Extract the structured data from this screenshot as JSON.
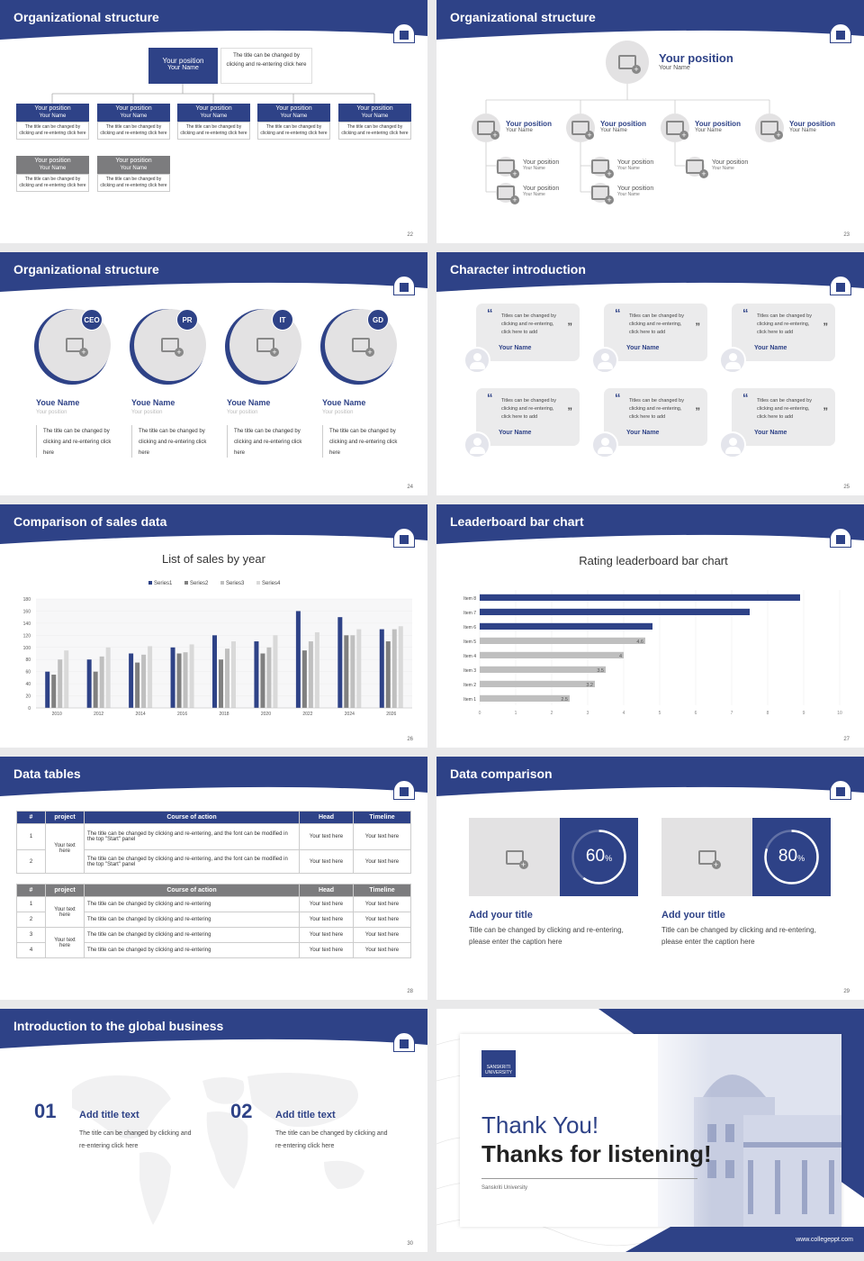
{
  "colors": {
    "brand": "#2e4287",
    "gray": "#7c7c7e",
    "light": "#e3e2e3"
  },
  "s22": {
    "title": "Organizational structure",
    "page": "22",
    "top": {
      "pos": "Your position",
      "name": "Your Name",
      "desc": "The title can be changed by clicking and re-entering click here"
    },
    "boxes": [
      {
        "pos": "Your position",
        "name": "Your Name",
        "desc": "The title can be changed by clicking and re-entering click here"
      },
      {
        "pos": "Your position",
        "name": "Your Name",
        "desc": "The title can be changed by clicking and re-entering click here"
      },
      {
        "pos": "Your position",
        "name": "Your Name",
        "desc": "The title can be changed by clicking and re-entering click here"
      },
      {
        "pos": "Your position",
        "name": "Your Name",
        "desc": "The title can be changed by clicking and re-entering click here"
      },
      {
        "pos": "Your position",
        "name": "Your Name",
        "desc": "The title can be changed by clicking and re-entering click here"
      }
    ],
    "subboxes": [
      {
        "pos": "Your position",
        "name": "Your Name",
        "desc": "The title can be changed by clicking and re-entering click here"
      },
      {
        "pos": "Your position",
        "name": "Your Name",
        "desc": "The title can be changed by clicking and re-entering click here"
      }
    ]
  },
  "s23": {
    "title": "Organizational structure",
    "page": "23",
    "top": {
      "pos": "Your position",
      "name": "Your Name"
    },
    "row": [
      {
        "pos": "Your position",
        "name": "Your Name"
      },
      {
        "pos": "Your position",
        "name": "Your Name"
      },
      {
        "pos": "Your position",
        "name": "Your Name"
      },
      {
        "pos": "Your position",
        "name": "Your Name"
      }
    ],
    "sub": [
      {
        "pos": "Your position",
        "name": "Your Name"
      },
      {
        "pos": "Your position",
        "name": "Your Name"
      },
      {
        "pos": "Your position",
        "name": "Your Name"
      },
      {
        "pos": "Your position",
        "name": "Your Name"
      },
      {
        "pos": "Your position",
        "name": "Your Name"
      }
    ]
  },
  "s24": {
    "title": "Organizational structure",
    "page": "24",
    "people": [
      {
        "badge": "CEO",
        "name": "Youe Name",
        "pos": "Your position",
        "desc": "The title can be changed by clicking and re-entering click here"
      },
      {
        "badge": "PR",
        "name": "Youe Name",
        "pos": "Your position",
        "desc": "The title can be changed by clicking and re-entering click here"
      },
      {
        "badge": "IT",
        "name": "Youe Name",
        "pos": "Your position",
        "desc": "The title can be changed by clicking and re-entering click here"
      },
      {
        "badge": "GD",
        "name": "Youe Name",
        "pos": "Your position",
        "desc": "The title can be changed by clicking and re-entering click here"
      }
    ]
  },
  "s25": {
    "title": "Character introduction",
    "page": "25",
    "cards": [
      {
        "text": "Titles can be changed by clicking and re-entering, click here to add",
        "name": "Your Name"
      },
      {
        "text": "Titles can be changed by clicking and re-entering, click here to add",
        "name": "Your Name"
      },
      {
        "text": "Titles can be changed by clicking and re-entering, click here to add",
        "name": "Your Name"
      },
      {
        "text": "Titles can be changed by clicking and re-entering, click here to add",
        "name": "Your Name"
      },
      {
        "text": "Titles can be changed by clicking and re-entering, click here to add",
        "name": "Your Name"
      },
      {
        "text": "Titles can be changed by clicking and re-entering, click here to add",
        "name": "Your Name"
      }
    ]
  },
  "s26": {
    "title": "Comparison of sales data",
    "page": "26"
  },
  "s27": {
    "title": "Leaderboard bar chart",
    "page": "27"
  },
  "chart_data": [
    {
      "type": "bar",
      "title": "List of sales by year",
      "categories": [
        "2010",
        "2012",
        "2014",
        "2016",
        "2018",
        "2020",
        "2022",
        "2024",
        "2026"
      ],
      "series": [
        {
          "name": "Series1",
          "color": "#2e4287",
          "values": [
            60,
            80,
            90,
            100,
            120,
            110,
            160,
            150,
            130
          ]
        },
        {
          "name": "Series2",
          "color": "#808080",
          "values": [
            55,
            60,
            75,
            90,
            80,
            90,
            95,
            120,
            110
          ]
        },
        {
          "name": "Series3",
          "color": "#bfbfbf",
          "values": [
            80,
            85,
            88,
            92,
            98,
            100,
            110,
            120,
            130
          ]
        },
        {
          "name": "Series4",
          "color": "#d9d9d9",
          "values": [
            95,
            100,
            102,
            105,
            110,
            120,
            125,
            130,
            135
          ]
        }
      ],
      "yticks": [
        "0",
        "20",
        "40",
        "60",
        "80",
        "100",
        "120",
        "140",
        "160",
        "180"
      ],
      "ylim": [
        0,
        180
      ],
      "legend": "top"
    },
    {
      "type": "bar",
      "orientation": "horizontal",
      "title": "Rating leaderboard bar chart",
      "categories": [
        "Item 8",
        "Item 7",
        "Item 6",
        "Item 5",
        "Item 4",
        "Item 3",
        "Item 2",
        "Item 1"
      ],
      "values": [
        8.9,
        7.5,
        4.8,
        4.6,
        4,
        3.5,
        3.2,
        2.5
      ],
      "labels": [
        "",
        "",
        "",
        "4.6",
        "4",
        "3.5",
        "3.2",
        "2.5"
      ],
      "xticks": [
        "0",
        "1",
        "2",
        "3",
        "4",
        "5",
        "6",
        "7",
        "8",
        "9",
        "10"
      ],
      "xlim": [
        0,
        10
      ]
    }
  ],
  "s28": {
    "title": "Data tables",
    "page": "28",
    "headers": [
      "#",
      "project",
      "Course of action",
      "Head",
      "Timeline"
    ],
    "t1": {
      "project": "Your text here",
      "rows": [
        {
          "n": "1",
          "action": "The title can be changed by clicking and re-entering, and the font can be modified in the top \"Start\" panel",
          "head": "Your text here",
          "time": "Your text here"
        },
        {
          "n": "2",
          "action": "The title can be changed by clicking and re-entering, and the font can be modified in the top \"Start\" panel",
          "head": "Your text here",
          "time": "Your text here"
        }
      ]
    },
    "t2": {
      "project1": "Your text here",
      "project2": "Your text here",
      "rows": [
        {
          "n": "1",
          "action": "The title can be changed by clicking and re-entering",
          "head": "Your text here",
          "time": "Your text here"
        },
        {
          "n": "2",
          "action": "The title can be changed by clicking and re-entering",
          "head": "Your text here",
          "time": "Your text here"
        },
        {
          "n": "3",
          "action": "The title can be changed by clicking and re-entering",
          "head": "Your text here",
          "time": "Your text here"
        },
        {
          "n": "4",
          "action": "The title can be changed by clicking and re-entering",
          "head": "Your text here",
          "time": "Your text here"
        }
      ]
    }
  },
  "s29": {
    "title": "Data comparison",
    "page": "29",
    "items": [
      {
        "value": "60",
        "unit": "%",
        "percent": 60,
        "heading": "Add your title",
        "desc": "Title can be changed by clicking and re-entering, please enter the caption here"
      },
      {
        "value": "80",
        "unit": "%",
        "percent": 80,
        "heading": "Add your title",
        "desc": "Title can be changed by clicking and re-entering, please enter the caption here"
      }
    ]
  },
  "s30": {
    "title": "Introduction to the global business",
    "page": "30",
    "items": [
      {
        "num": "01",
        "heading": "Add title text",
        "desc": "The title can be changed by clicking and re-entering click here"
      },
      {
        "num": "02",
        "heading": "Add title text",
        "desc": "The title can be changed by clicking and re-entering click here"
      }
    ]
  },
  "s31": {
    "thank": "Thank You!",
    "listen": "Thanks for listening!",
    "uni": "Sanskriti University",
    "logo_text": "SANSKRITI UNIVERSITY",
    "url": "www.collegeppt.com"
  }
}
